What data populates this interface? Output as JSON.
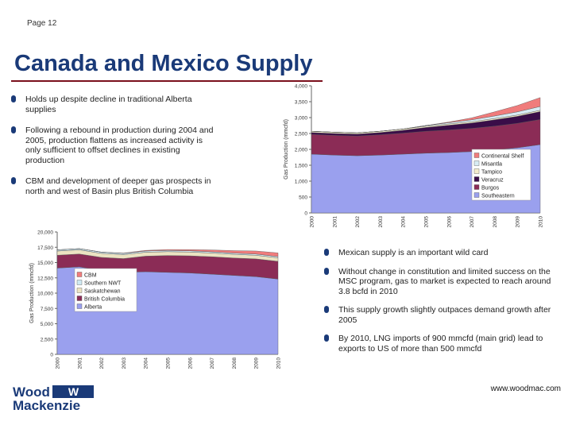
{
  "header": {
    "page": "Page 12"
  },
  "title": "Canada and Mexico Supply",
  "bullets_left": [
    "Holds up despite decline in traditional Alberta supplies",
    "Following a rebound in production during 2004 and 2005, production flattens as increased activity is only sufficient to offset declines in existing production",
    "CBM and development of deeper gas prospects in north and west of Basin plus British Columbia"
  ],
  "bullets_right": [
    "Mexican supply is an important wild card",
    "Without change in constitution and limited success on the MSC program, gas to market is expected to reach around 3.8 bcfd in 2010",
    "This supply growth slightly outpaces demand growth after 2005",
    "By 2010, LNG imports of 900 mmcfd (main grid) lead to exports to US of more than 500 mmcfd"
  ],
  "footer": {
    "logo_top": "Wood",
    "logo_mark": "W",
    "logo_bottom": "Mackenzie",
    "url": "www.woodmac.com"
  },
  "chart_data": [
    {
      "type": "area",
      "region": "Mexico",
      "stacked": true,
      "x": [
        "2000",
        "2001",
        "2002",
        "2003",
        "2004",
        "2005",
        "2006",
        "2007",
        "2008",
        "2009",
        "2010"
      ],
      "ylabel": "Gas Production (mmcfd)",
      "ylim": [
        0,
        4000
      ],
      "yticks": [
        "0",
        "500",
        "1,000",
        "1,500",
        "2,000",
        "2,500",
        "3,000",
        "3,500",
        "4,000"
      ],
      "legend_position": "inside-right",
      "series": [
        {
          "name": "Southeastern",
          "color": "#9aa0ee",
          "values": [
            1850,
            1820,
            1800,
            1820,
            1850,
            1880,
            1900,
            1930,
            1980,
            2050,
            2150
          ]
        },
        {
          "name": "Burgos",
          "color": "#8b2c56",
          "values": [
            620,
            620,
            620,
            640,
            660,
            690,
            710,
            730,
            750,
            770,
            790
          ]
        },
        {
          "name": "Veracruz",
          "color": "#3a0d48",
          "values": [
            60,
            60,
            60,
            70,
            90,
            120,
            150,
            170,
            200,
            220,
            250
          ]
        },
        {
          "name": "Tampico",
          "color": "#f3eccd",
          "values": [
            40,
            40,
            40,
            40,
            40,
            40,
            40,
            40,
            40,
            40,
            40
          ]
        },
        {
          "name": "Misantla",
          "color": "#d8ecf4",
          "values": [
            0,
            0,
            0,
            0,
            0,
            20,
            40,
            60,
            80,
            100,
            120
          ]
        },
        {
          "name": "Continental Shelf",
          "color": "#f07c7c",
          "values": [
            0,
            0,
            0,
            0,
            0,
            0,
            20,
            60,
            130,
            200,
            280
          ]
        }
      ]
    },
    {
      "type": "area",
      "region": "Canada",
      "stacked": true,
      "x": [
        "2000",
        "2001",
        "2002",
        "2003",
        "2004",
        "2005",
        "2006",
        "2007",
        "2008",
        "2009",
        "2010"
      ],
      "ylabel": "Gas Production (mmcfd)",
      "ylim": [
        0,
        20000
      ],
      "yticks": [
        "0",
        "2,500",
        "5,000",
        "7,500",
        "10,000",
        "12,500",
        "15,000",
        "17,500",
        "20,000"
      ],
      "legend_position": "inside-left",
      "series": [
        {
          "name": "Alberta",
          "color": "#9aa0ee",
          "values": [
            14100,
            14300,
            13700,
            13400,
            13500,
            13400,
            13300,
            13100,
            12900,
            12700,
            12300
          ]
        },
        {
          "name": "British Columbia",
          "color": "#8b2c56",
          "values": [
            2100,
            2100,
            2150,
            2250,
            2550,
            2750,
            2800,
            2850,
            2850,
            2900,
            2900
          ]
        },
        {
          "name": "Saskatchewan",
          "color": "#ece3c2",
          "values": [
            680,
            680,
            660,
            650,
            640,
            630,
            620,
            610,
            600,
            590,
            580
          ]
        },
        {
          "name": "Southern NWT",
          "color": "#cfe9f3",
          "values": [
            200,
            200,
            200,
            200,
            200,
            200,
            200,
            200,
            200,
            200,
            200
          ]
        },
        {
          "name": "CBM",
          "color": "#f07c7c",
          "values": [
            0,
            0,
            0,
            50,
            100,
            150,
            200,
            300,
            400,
            500,
            600
          ]
        }
      ]
    }
  ]
}
